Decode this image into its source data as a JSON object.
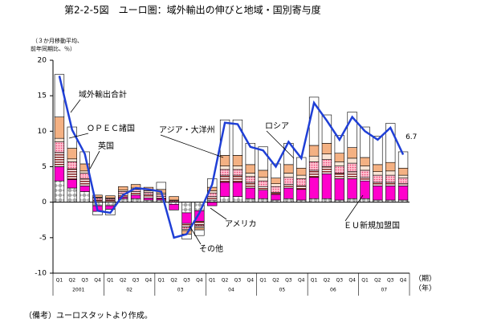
{
  "chart_data": {
    "type": "stacked-bar-line",
    "title": "第2-2-5図　ユーロ圏：域外輸出の伸びと地域・国別寄与度",
    "y_note": [
      "（３か月移動平均、",
      "前年同期比、％）"
    ],
    "source": "（備考）ユーロスタットより作成。",
    "x_unit": [
      "（期）",
      "（年）"
    ],
    "categories": [
      "Q1",
      "Q2",
      "Q3",
      "Q4",
      "Q1",
      "Q2",
      "Q3",
      "Q4",
      "Q1",
      "Q2",
      "Q3",
      "Q4",
      "Q1",
      "Q2",
      "Q3",
      "Q4",
      "Q1",
      "Q2",
      "Q3",
      "Q4",
      "Q1",
      "Q2",
      "Q3",
      "Q4",
      "Q1",
      "Q2",
      "Q3",
      "Q4"
    ],
    "years": [
      "2001",
      "02",
      "03",
      "04",
      "05",
      "06",
      "07"
    ],
    "ylim": [
      -10,
      20
    ],
    "yticks": [
      -10,
      -5,
      0,
      5,
      10,
      15,
      20
    ],
    "series": [
      {
        "name": "その他",
        "color": "#a6a6a6",
        "pattern": "diamond",
        "values": [
          3,
          2,
          1.5,
          -0.5,
          -0.5,
          0.5,
          0.5,
          0.3,
          0.3,
          -0.3,
          -1.5,
          -1.2,
          0.3,
          0.8,
          0.8,
          0.5,
          0.5,
          0.3,
          0.5,
          0.3,
          0.5,
          0.5,
          0.3,
          0.5,
          0.5,
          0.3,
          0.3,
          0.3
        ]
      },
      {
        "name": "ＥＵ新規加盟国",
        "color": "#ff00cc",
        "pattern": "none",
        "values": [
          2,
          1.2,
          0.8,
          -0.8,
          -0.5,
          0.2,
          0.5,
          0.3,
          0.2,
          -0.8,
          -1.5,
          -1.5,
          -0.5,
          2,
          2,
          1.5,
          1.2,
          0.8,
          1.5,
          1.5,
          3,
          3.5,
          3,
          2.8,
          2.5,
          2,
          2,
          2
        ]
      },
      {
        "name": "アメリカ",
        "color": "#8b2a2a",
        "pattern": "stripes",
        "values": [
          2,
          1.5,
          1,
          0.3,
          0.3,
          0.5,
          0.5,
          0.5,
          0.3,
          0,
          -0.5,
          -0.5,
          0.5,
          1,
          1,
          0.8,
          0.5,
          0.3,
          0.5,
          0.5,
          1,
          1,
          0.8,
          1,
          0.5,
          0.5,
          0.5,
          0.3
        ]
      },
      {
        "name": "英国",
        "color": "#e83e6f",
        "pattern": "dots",
        "values": [
          1.5,
          1,
          0.8,
          0.3,
          0.2,
          0.3,
          0.3,
          0.3,
          0.3,
          0.2,
          -0.3,
          -0.2,
          0.5,
          0.8,
          0.8,
          0.8,
          0.8,
          0.8,
          1,
          1,
          1.2,
          1,
          1,
          1.2,
          1,
          1,
          1,
          0.8
        ]
      },
      {
        "name": "ロシア",
        "color": "#fbe5d6",
        "pattern": "none",
        "values": [
          0.5,
          0.4,
          0.3,
          0.1,
          0.1,
          0.2,
          0.2,
          0.2,
          0.2,
          0.1,
          -0.2,
          -0.2,
          0.3,
          0.5,
          0.5,
          0.5,
          0.5,
          0.4,
          0.6,
          0.5,
          0.8,
          0.8,
          0.6,
          0.7,
          0.6,
          0.5,
          0.6,
          0.4
        ]
      },
      {
        "name": "ＯＰＥＣ諸国",
        "color": "#f4b183",
        "pattern": "none",
        "values": [
          3,
          1.5,
          1,
          0.3,
          0.3,
          0.5,
          0.5,
          0.5,
          0.5,
          0.5,
          -0.5,
          -0.3,
          0.5,
          1.5,
          1.5,
          1.2,
          1,
          0.8,
          1.2,
          1,
          1.5,
          1.5,
          1.2,
          1.5,
          1.2,
          1,
          1.2,
          1
        ]
      },
      {
        "name": "アジア・大洋州",
        "color": "#ffffff",
        "pattern": "none",
        "values": [
          6,
          3,
          1.7,
          -0.5,
          -0.8,
          0,
          0,
          0,
          1,
          0,
          -0.7,
          -0.8,
          1.2,
          5,
          5,
          3,
          3.3,
          2,
          3,
          1.5,
          6.8,
          4,
          2.5,
          5,
          4.3,
          4,
          5.5,
          2.3
        ]
      }
    ],
    "line": {
      "name": "域外輸出合計",
      "color": "#1f3fd6",
      "values": [
        17.8,
        10.2,
        6.8,
        -1.2,
        -1.5,
        1,
        2,
        1.8,
        1.5,
        -5,
        -4.5,
        -1.5,
        2.5,
        11.2,
        11,
        7.8,
        7.3,
        5,
        8.5,
        6.2,
        14,
        11.5,
        8.8,
        12,
        10,
        8.8,
        10.5,
        6.7
      ],
      "value_labels": [
        null,
        null,
        null,
        null,
        null,
        null,
        null,
        null,
        null,
        null,
        null,
        null,
        null,
        null,
        null,
        null,
        null,
        null,
        null,
        null,
        null,
        null,
        null,
        null,
        null,
        null,
        null,
        "6.7"
      ]
    }
  }
}
